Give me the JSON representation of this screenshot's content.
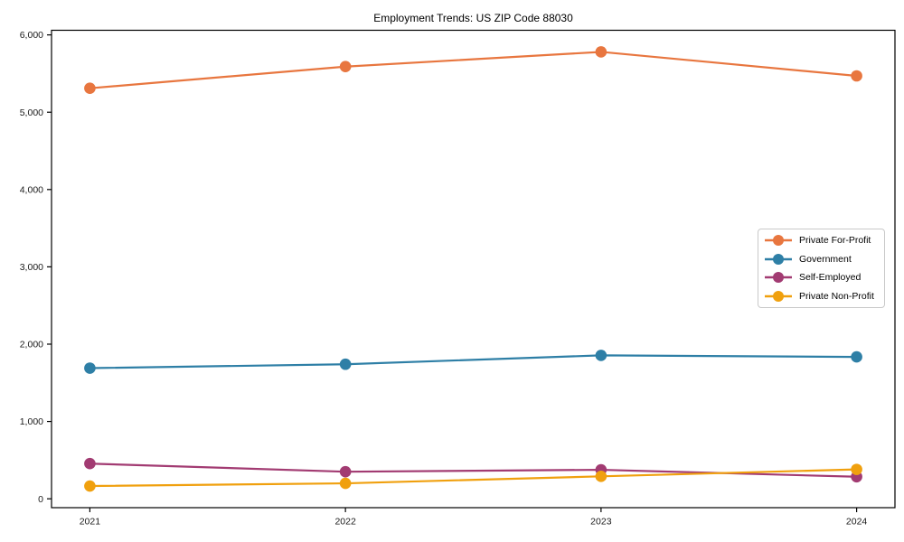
{
  "figure": {
    "background": "#ffffff",
    "axes_color": "#000000"
  },
  "chart_data": {
    "type": "line",
    "title": "Employment Trends: US ZIP Code 88030",
    "xlabel": "",
    "ylabel": "",
    "categories": [
      "2021",
      "2022",
      "2023",
      "2024"
    ],
    "series": [
      {
        "name": "Private For-Profit",
        "color": "#E8763F",
        "values": [
          5310,
          5590,
          5780,
          5470
        ]
      },
      {
        "name": "Government",
        "color": "#2E7FA6",
        "values": [
          1690,
          1740,
          1855,
          1835
        ]
      },
      {
        "name": "Self-Employed",
        "color": "#A23B72",
        "values": [
          455,
          350,
          375,
          285
        ]
      },
      {
        "name": "Private Non-Profit",
        "color": "#F0A00E",
        "values": [
          165,
          200,
          290,
          380
        ]
      }
    ],
    "ylim": [
      0,
      6000
    ],
    "yticks": [
      0,
      1000,
      2000,
      3000,
      4000,
      5000,
      6000
    ],
    "ytick_labels": [
      "0",
      "1,000",
      "2,000",
      "3,000",
      "4,000",
      "5,000",
      "6,000"
    ],
    "grid": false,
    "legend_position": "center-right",
    "marker": "circle"
  }
}
